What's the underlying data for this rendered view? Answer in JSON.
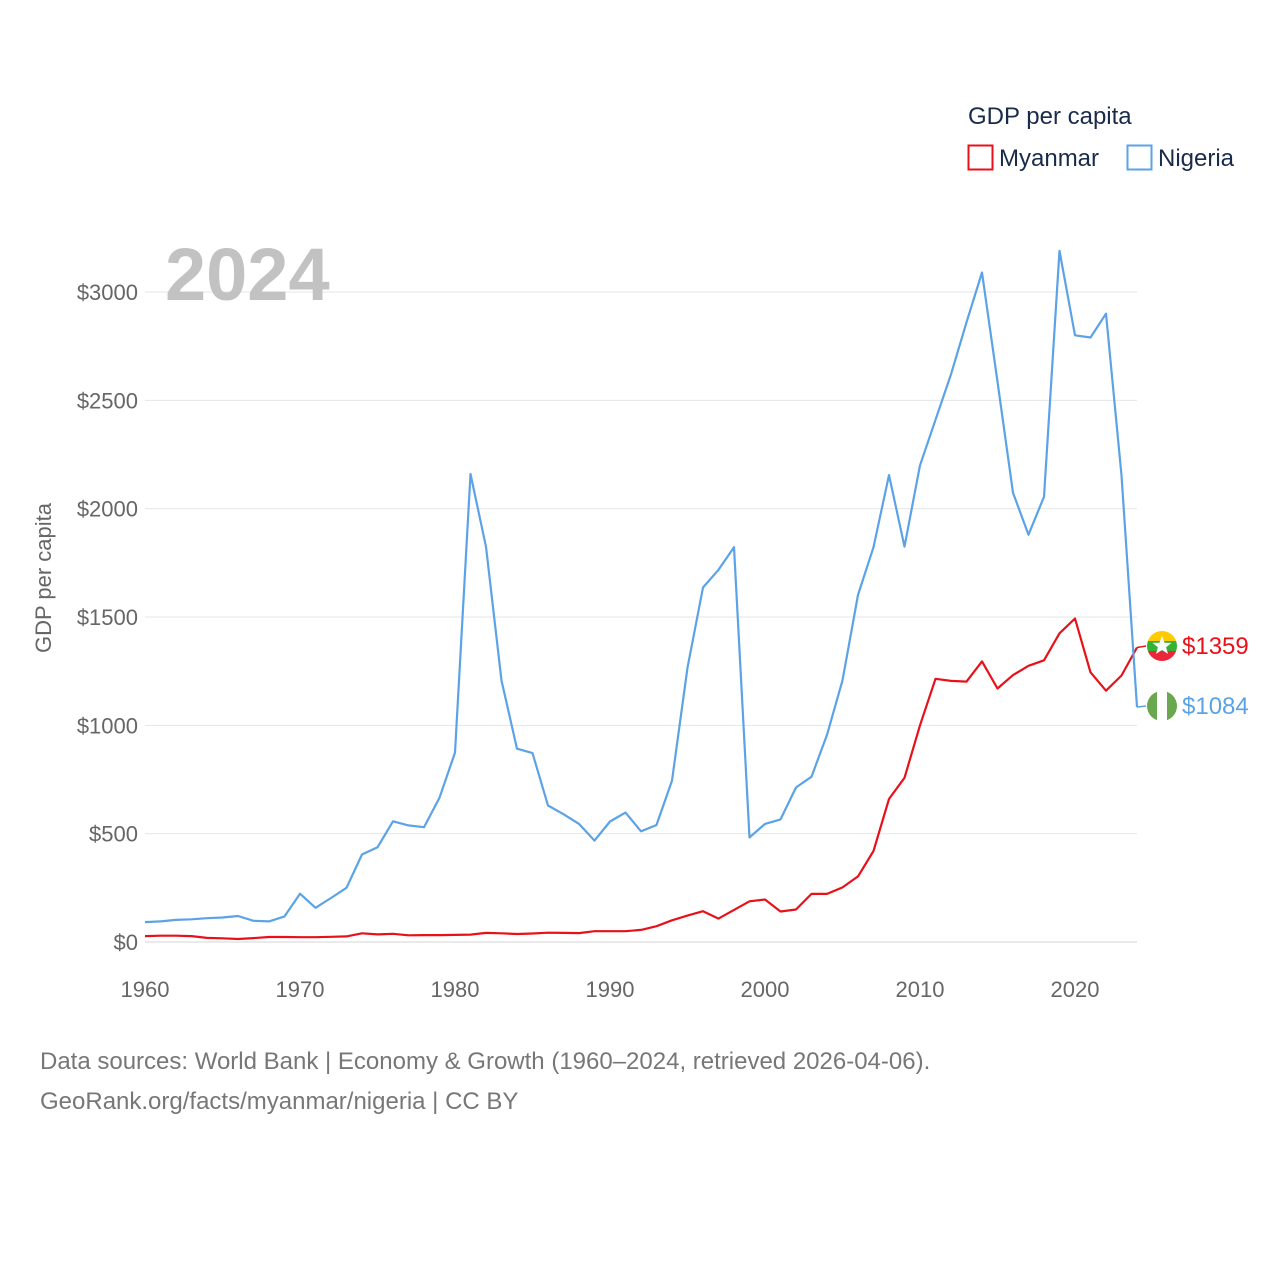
{
  "chart_data": {
    "type": "line",
    "title": "GDP per capita",
    "year_label": "2024",
    "ylabel": "GDP per capita",
    "xlabel": "",
    "xlim": [
      1960,
      2024
    ],
    "ylim": [
      0,
      3200
    ],
    "x_ticks": [
      1960,
      1970,
      1980,
      1990,
      2000,
      2010,
      2020
    ],
    "x_tick_labels": [
      "1960",
      "1970",
      "1980",
      "1990",
      "2000",
      "2010",
      "2020"
    ],
    "y_ticks": [
      0,
      500,
      1000,
      1500,
      2000,
      2500,
      3000
    ],
    "y_tick_labels": [
      "$0",
      "$500",
      "$1000",
      "$1500",
      "$2000",
      "$2500",
      "$3000"
    ],
    "grid": true,
    "legend_position": "top-right",
    "x": [
      1960,
      1961,
      1962,
      1963,
      1964,
      1965,
      1966,
      1967,
      1968,
      1969,
      1970,
      1971,
      1972,
      1973,
      1974,
      1975,
      1976,
      1977,
      1978,
      1979,
      1980,
      1981,
      1982,
      1983,
      1984,
      1985,
      1986,
      1987,
      1988,
      1989,
      1990,
      1991,
      1992,
      1993,
      1994,
      1995,
      1996,
      1997,
      1998,
      1999,
      2000,
      2001,
      2002,
      2003,
      2004,
      2005,
      2006,
      2007,
      2008,
      2009,
      2010,
      2011,
      2012,
      2013,
      2014,
      2015,
      2016,
      2017,
      2018,
      2019,
      2020,
      2021,
      2022,
      2023,
      2024
    ],
    "series": [
      {
        "name": "Myanmar",
        "color": "#e8111a",
        "end_label": "$1359",
        "flag": "myanmar-flag",
        "values": [
          27,
          29,
          29,
          27,
          19,
          17,
          14,
          18,
          23,
          23,
          22,
          22,
          24,
          26,
          40,
          35,
          38,
          31,
          32,
          32,
          33,
          34,
          42,
          40,
          37,
          39,
          43,
          42,
          41,
          50,
          50,
          50,
          56,
          73,
          100,
          122,
          142,
          108,
          148,
          188,
          196,
          141,
          150,
          222,
          222,
          252,
          303,
          420,
          660,
          758,
          1000,
          1215,
          1205,
          1202,
          1295,
          1170,
          1232,
          1275,
          1300,
          1425,
          1493,
          1245,
          1160,
          1230,
          1359
        ]
      },
      {
        "name": "Nigeria",
        "color": "#5ba3e6",
        "end_label": "$1084",
        "flag": "nigeria-flag",
        "values": [
          92,
          95,
          102,
          105,
          110,
          113,
          120,
          98,
          95,
          118,
          223,
          158,
          203,
          250,
          404,
          437,
          557,
          538,
          530,
          666,
          874,
          2160,
          1824,
          1207,
          892,
          872,
          630,
          590,
          545,
          468,
          556,
          597,
          511,
          540,
          745,
          1266,
          1636,
          1718,
          1822,
          483,
          545,
          566,
          713,
          763,
          956,
          1208,
          1602,
          1822,
          2155,
          1825,
          2200,
          2410,
          2620,
          2860,
          3090,
          2586,
          2073,
          1880,
          2055,
          3190,
          2800,
          2790,
          2900,
          2154,
          1084
        ]
      }
    ]
  },
  "footer": {
    "line1": "Data sources: World Bank | Economy & Growth (1960–2024, retrieved 2026-04-06).",
    "line2": "GeoRank.org/facts/myanmar/nigeria | CC BY"
  }
}
